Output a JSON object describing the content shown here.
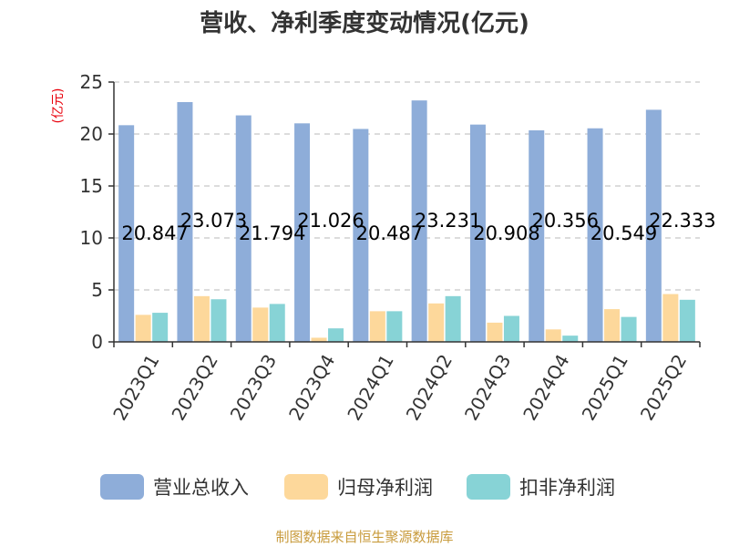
{
  "chart_data": {
    "type": "bar",
    "title": "营收、净利季度变动情况(亿元)",
    "unit_label": "(亿元)",
    "source": "制图数据来自恒生聚源数据库",
    "categories": [
      "2023Q1",
      "2023Q2",
      "2023Q3",
      "2023Q4",
      "2024Q1",
      "2024Q2",
      "2024Q3",
      "2024Q4",
      "2025Q1",
      "2025Q2"
    ],
    "ylim": [
      0,
      25
    ],
    "yticks": [
      0,
      5,
      10,
      15,
      20,
      25
    ],
    "grid": true,
    "legend_position": "bottom",
    "series": [
      {
        "name": "营业总收入",
        "color": "#8eadd9",
        "values": [
          20.847,
          23.073,
          21.794,
          21.026,
          20.487,
          23.231,
          20.908,
          20.356,
          20.549,
          22.333
        ],
        "labels": [
          "20.847",
          "23.073",
          "21.794",
          "21.026",
          "20.487",
          "23.231",
          "20.908",
          "20.356",
          "20.549",
          "22.333"
        ]
      },
      {
        "name": "归母净利润",
        "color": "#fdd89b",
        "values": [
          2.6,
          4.4,
          3.3,
          0.4,
          2.95,
          3.7,
          1.85,
          1.2,
          3.15,
          4.6
        ]
      },
      {
        "name": "扣非净利润",
        "color": "#87d3d6",
        "values": [
          2.8,
          4.1,
          3.65,
          1.3,
          2.95,
          4.4,
          2.5,
          0.6,
          2.4,
          4.05
        ]
      }
    ]
  }
}
